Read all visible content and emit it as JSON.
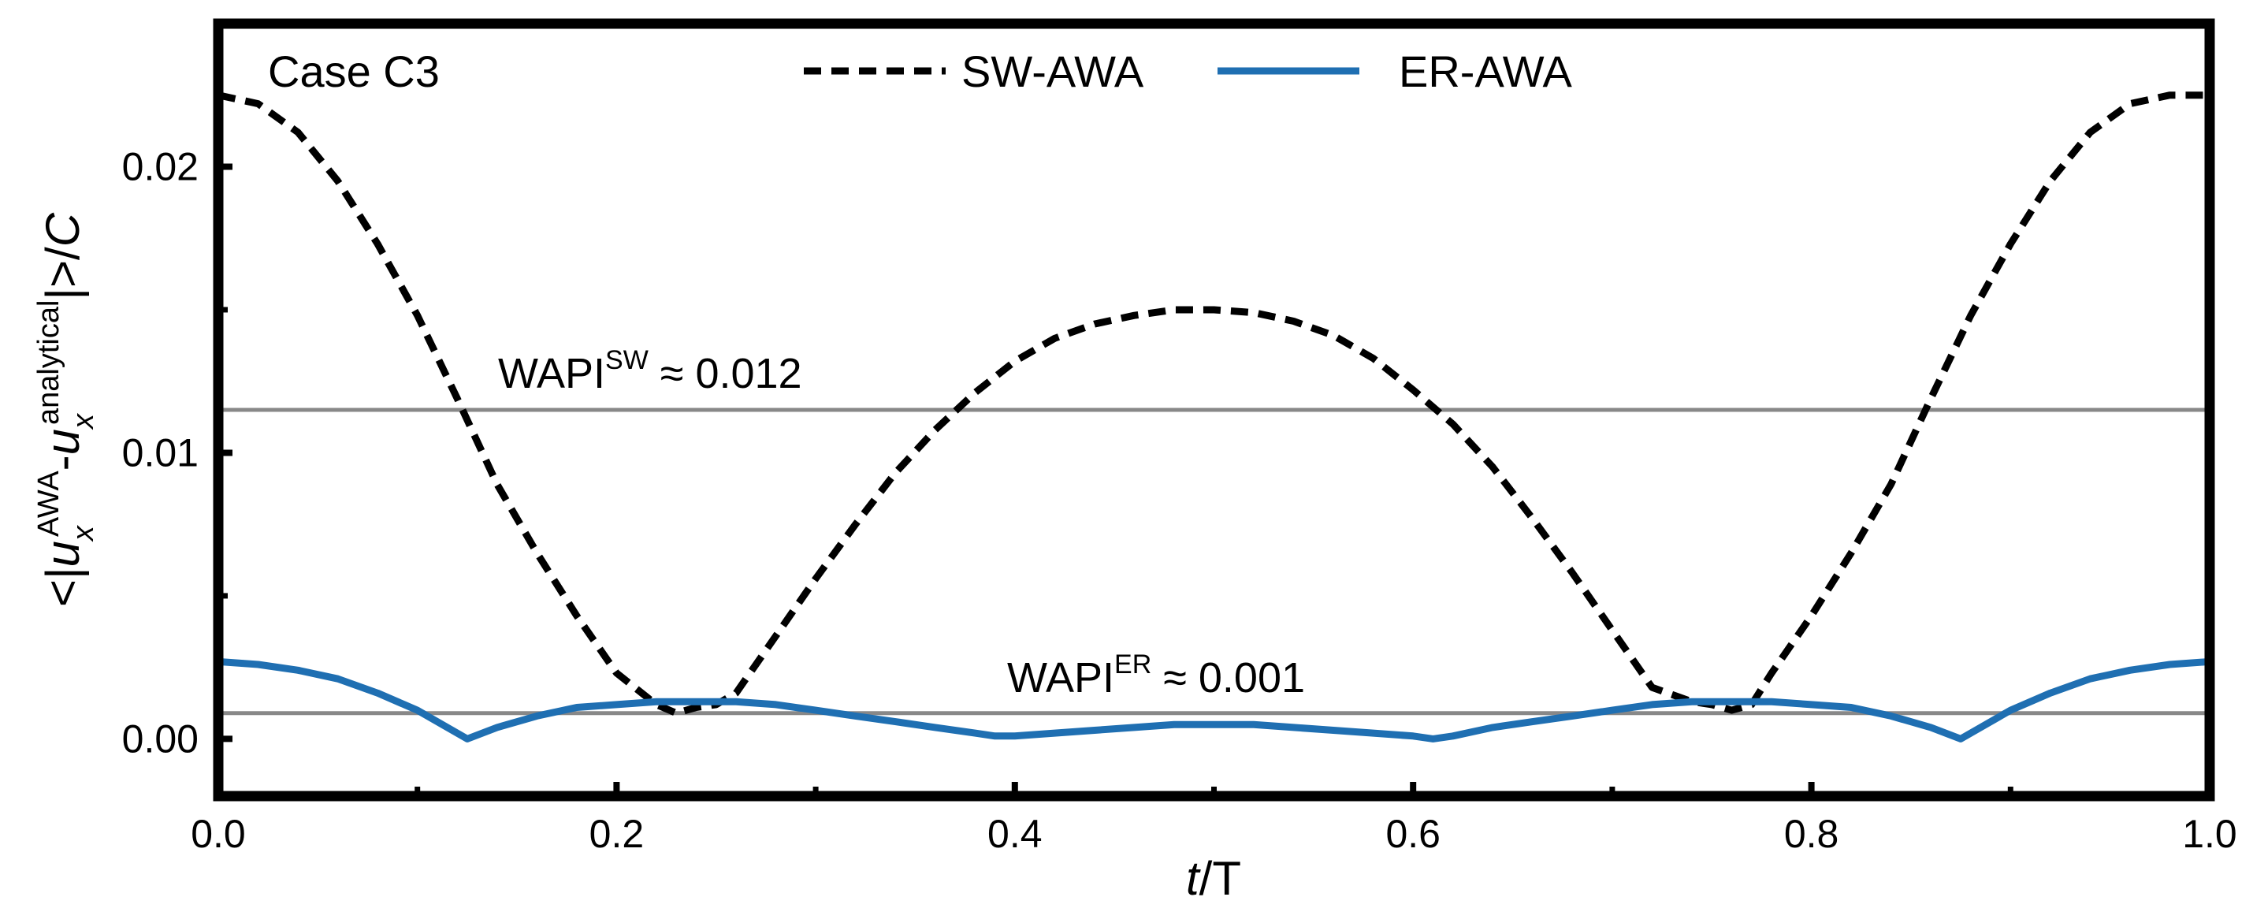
{
  "chart_data": {
    "type": "line",
    "title": "",
    "case_label": "Case C3",
    "xlabel": {
      "var": "t",
      "rest": "/T"
    },
    "ylabel": {
      "lt": "<|",
      "var1": "u",
      "sub1": "x",
      "sup1": "AWA",
      "minus": "-",
      "var2": "u",
      "sub2": "x",
      "sup2": "analytical",
      "rest": "|>/",
      "var3": "C"
    },
    "xlim": [
      0.0,
      1.0
    ],
    "ylim": [
      -0.002,
      0.025
    ],
    "x_ticks": [
      0.0,
      0.2,
      0.4,
      0.6,
      0.8,
      1.0
    ],
    "x_tick_labels": [
      "0.0",
      "0.2",
      "0.4",
      "0.6",
      "0.8",
      "1.0"
    ],
    "y_ticks": [
      0.0,
      0.01,
      0.02
    ],
    "y_tick_labels": [
      "0.00",
      "0.01",
      "0.02"
    ],
    "grid": false,
    "legend_position": "top-center",
    "series": [
      {
        "name": "SW-AWA",
        "color": "#000000",
        "style": "dashed",
        "x": [
          0.0,
          0.02,
          0.04,
          0.06,
          0.08,
          0.1,
          0.12,
          0.14,
          0.16,
          0.18,
          0.2,
          0.22,
          0.23,
          0.24,
          0.25,
          0.26,
          0.28,
          0.3,
          0.32,
          0.34,
          0.36,
          0.38,
          0.4,
          0.42,
          0.44,
          0.46,
          0.48,
          0.5,
          0.52,
          0.54,
          0.56,
          0.58,
          0.6,
          0.62,
          0.64,
          0.66,
          0.68,
          0.7,
          0.72,
          0.74,
          0.75,
          0.76,
          0.77,
          0.78,
          0.8,
          0.82,
          0.84,
          0.86,
          0.88,
          0.9,
          0.92,
          0.94,
          0.96,
          0.98,
          1.0
        ],
        "values": [
          0.0225,
          0.0222,
          0.0212,
          0.0195,
          0.0173,
          0.0148,
          0.0119,
          0.0089,
          0.0065,
          0.0043,
          0.0023,
          0.0012,
          0.0009,
          0.0011,
          0.0012,
          0.0016,
          0.0036,
          0.0056,
          0.0075,
          0.0093,
          0.0108,
          0.0121,
          0.0132,
          0.014,
          0.0145,
          0.0148,
          0.015,
          0.015,
          0.0149,
          0.0146,
          0.0141,
          0.0133,
          0.0122,
          0.011,
          0.0095,
          0.0077,
          0.0058,
          0.0038,
          0.0018,
          0.0013,
          0.0012,
          0.001,
          0.0012,
          0.0023,
          0.0043,
          0.0065,
          0.0089,
          0.0119,
          0.0148,
          0.0173,
          0.0195,
          0.0212,
          0.0222,
          0.0225,
          0.0225
        ]
      },
      {
        "name": "ER-AWA",
        "color": "#1f6fb2",
        "style": "solid",
        "x": [
          0.0,
          0.02,
          0.04,
          0.06,
          0.08,
          0.1,
          0.115,
          0.125,
          0.14,
          0.16,
          0.18,
          0.2,
          0.22,
          0.24,
          0.26,
          0.28,
          0.3,
          0.32,
          0.34,
          0.36,
          0.38,
          0.39,
          0.4,
          0.42,
          0.44,
          0.46,
          0.48,
          0.5,
          0.52,
          0.54,
          0.56,
          0.58,
          0.6,
          0.61,
          0.62,
          0.64,
          0.66,
          0.68,
          0.7,
          0.72,
          0.74,
          0.76,
          0.78,
          0.8,
          0.82,
          0.84,
          0.86,
          0.875,
          0.885,
          0.9,
          0.92,
          0.94,
          0.96,
          0.98,
          1.0
        ],
        "values": [
          0.0027,
          0.0026,
          0.0024,
          0.0021,
          0.0016,
          0.001,
          0.0004,
          0.0,
          0.0004,
          0.0008,
          0.0011,
          0.0012,
          0.0013,
          0.0013,
          0.0013,
          0.0012,
          0.001,
          0.0008,
          0.0006,
          0.0004,
          0.0002,
          0.0001,
          0.0001,
          0.0002,
          0.0003,
          0.0004,
          0.0005,
          0.0005,
          0.0005,
          0.0004,
          0.0003,
          0.0002,
          0.0001,
          0.0,
          0.0001,
          0.0004,
          0.0006,
          0.0008,
          0.001,
          0.0012,
          0.0013,
          0.0013,
          0.0013,
          0.0012,
          0.0011,
          0.0008,
          0.0004,
          0.0,
          0.0004,
          0.001,
          0.0016,
          0.0021,
          0.0024,
          0.0026,
          0.0027
        ]
      }
    ],
    "reference_lines": [
      {
        "name": "WAPI-SW",
        "value": 0.0115,
        "color": "#888888",
        "label_base": "WAPI",
        "label_sup": "SW",
        "label_rest": " ≈ 0.012"
      },
      {
        "name": "WAPI-ER",
        "value": 0.0009,
        "color": "#888888",
        "label_base": "WAPI",
        "label_sup": "ER",
        "label_rest": " ≈ 0.001"
      }
    ]
  }
}
